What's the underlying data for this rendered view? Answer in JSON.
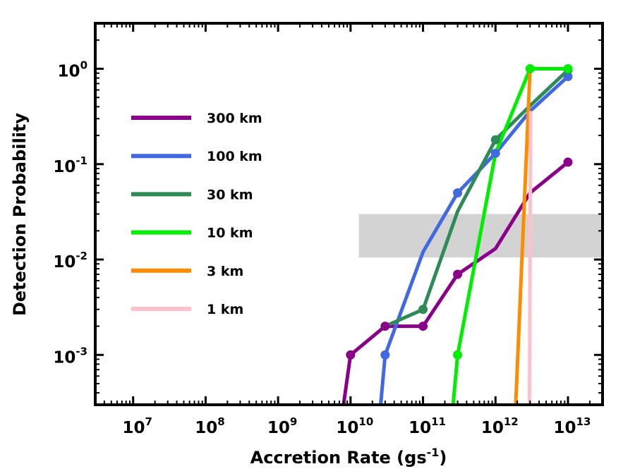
{
  "chart_data": {
    "type": "line",
    "x_scale": "log",
    "y_scale": "log",
    "xlabel": {
      "base": "Accretion Rate (gs",
      "sup": "-1",
      "tail": ")"
    },
    "ylabel": "Detection Probability",
    "xlim": [
      3000000.0,
      30000000000000.0
    ],
    "ylim": [
      0.0003,
      3
    ],
    "x_ticks": [
      {
        "value": 10000000.0,
        "base": "10",
        "exp": "7"
      },
      {
        "value": 100000000.0,
        "base": "10",
        "exp": "8"
      },
      {
        "value": 1000000000.0,
        "base": "10",
        "exp": "9"
      },
      {
        "value": 10000000000.0,
        "base": "10",
        "exp": "10"
      },
      {
        "value": 100000000000.0,
        "base": "10",
        "exp": "11"
      },
      {
        "value": 1000000000000.0,
        "base": "10",
        "exp": "12"
      },
      {
        "value": 10000000000000.0,
        "base": "10",
        "exp": "13"
      }
    ],
    "y_ticks": [
      {
        "value": 0.001,
        "base": "10",
        "exp": "-3"
      },
      {
        "value": 0.01,
        "base": "10",
        "exp": "-2"
      },
      {
        "value": 0.1,
        "base": "10",
        "exp": "-1"
      },
      {
        "value": 1,
        "base": "10",
        "exp": "0"
      }
    ],
    "shaded_band": {
      "x_min": 13000000000.0,
      "x_max": 30000000000000.0,
      "y_min": 0.0105,
      "y_max": 0.03,
      "color": "#d3d3d3"
    },
    "legend_position": "left",
    "grid": false,
    "series": [
      {
        "name": "300 km",
        "color": "#8b008b",
        "line": [
          [
            8000000000.0,
            0.0003
          ],
          [
            10000000000.0,
            0.001
          ],
          [
            30000000000.0,
            0.002
          ],
          [
            100000000000.0,
            0.002
          ],
          [
            300000000000.0,
            0.007
          ],
          [
            1000000000000.0,
            0.013
          ],
          [
            3000000000000.0,
            0.05
          ],
          [
            10000000000000.0,
            0.105
          ]
        ],
        "markers": [
          [
            10000000000.0,
            0.001
          ],
          [
            30000000000.0,
            0.002
          ],
          [
            100000000000.0,
            0.002
          ],
          [
            300000000000.0,
            0.007
          ],
          [
            10000000000000.0,
            0.105
          ]
        ]
      },
      {
        "name": "100 km",
        "color": "#4169e1",
        "line": [
          [
            26000000000.0,
            0.0003
          ],
          [
            30000000000.0,
            0.001
          ],
          [
            100000000000.0,
            0.012
          ],
          [
            300000000000.0,
            0.05
          ],
          [
            1000000000000.0,
            0.13
          ],
          [
            3000000000000.0,
            0.36
          ],
          [
            10000000000000.0,
            0.83
          ]
        ],
        "markers": [
          [
            30000000000.0,
            0.001
          ],
          [
            300000000000.0,
            0.05
          ],
          [
            1000000000000.0,
            0.13
          ],
          [
            10000000000000.0,
            0.83
          ]
        ]
      },
      {
        "name": "30 km",
        "color": "#2e8b57",
        "line": [
          [
            30000000000.0,
            0.002
          ],
          [
            100000000000.0,
            0.003
          ],
          [
            300000000000.0,
            0.032
          ],
          [
            1000000000000.0,
            0.18
          ],
          [
            3000000000000.0,
            0.41
          ],
          [
            10000000000000.0,
            0.97
          ]
        ],
        "markers": [
          [
            100000000000.0,
            0.003
          ],
          [
            1000000000000.0,
            0.18
          ],
          [
            10000000000000.0,
            0.97
          ]
        ]
      },
      {
        "name": "10 km",
        "color": "#00ee00",
        "line": [
          [
            260000000000.0,
            0.0003
          ],
          [
            300000000000.0,
            0.001
          ],
          [
            1000000000000.0,
            0.13
          ],
          [
            3000000000000.0,
            1.0
          ],
          [
            10000000000000.0,
            1.0
          ]
        ],
        "markers": [
          [
            300000000000.0,
            0.001
          ],
          [
            3000000000000.0,
            1.0
          ],
          [
            10000000000000.0,
            1.0
          ]
        ]
      },
      {
        "name": "3 km",
        "color": "#ff8c00",
        "line": [
          [
            1900000000000.0,
            0.0003
          ],
          [
            3000000000000.0,
            1.0
          ]
        ],
        "markers": []
      },
      {
        "name": "1 km",
        "color": "#ffc0cb",
        "line": [
          [
            2950000000000.0,
            0.0003
          ],
          [
            3050000000000.0,
            0.36
          ]
        ],
        "markers": []
      }
    ]
  }
}
